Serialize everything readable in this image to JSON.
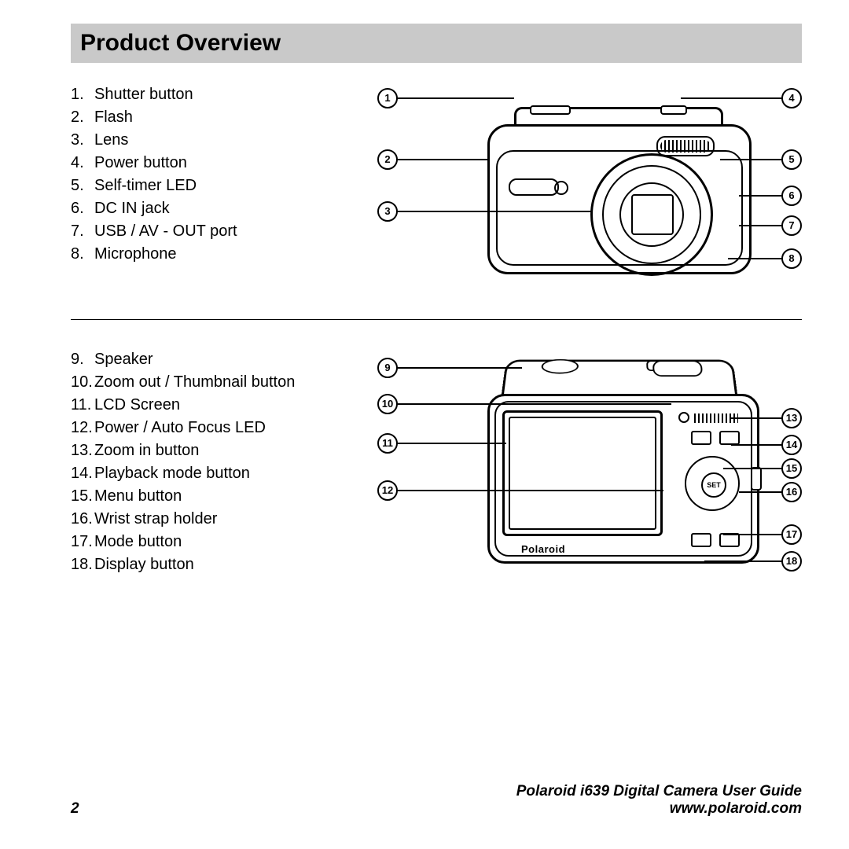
{
  "title": "Product Overview",
  "front_parts": [
    {
      "n": "1.",
      "label": "Shutter button"
    },
    {
      "n": "2.",
      "label": "Flash"
    },
    {
      "n": "3.",
      "label": "Lens"
    },
    {
      "n": "4.",
      "label": "Power button"
    },
    {
      "n": "5.",
      "label": "Self-timer LED"
    },
    {
      "n": "6.",
      "label": "DC IN jack"
    },
    {
      "n": "7.",
      "label": "USB / AV - OUT port"
    },
    {
      "n": "8.",
      "label": "Microphone"
    }
  ],
  "back_parts": [
    {
      "n": "9.",
      "label": "Speaker"
    },
    {
      "n": "10.",
      "label": "Zoom out / Thumbnail button"
    },
    {
      "n": "11.",
      "label": "LCD Screen"
    },
    {
      "n": "12.",
      "label": "Power / Auto Focus LED"
    },
    {
      "n": "13.",
      "label": "Zoom in button"
    },
    {
      "n": "14.",
      "label": "Playback mode button"
    },
    {
      "n": "15.",
      "label": "Menu button"
    },
    {
      "n": "16.",
      "label": "Wrist strap holder"
    },
    {
      "n": "17.",
      "label": "Mode button"
    },
    {
      "n": "18.",
      "label": "Display button"
    }
  ],
  "front_callouts": {
    "left": [
      "1",
      "2",
      "3"
    ],
    "right": [
      "4",
      "5",
      "6",
      "7",
      "8"
    ]
  },
  "back_callouts": {
    "left": [
      "9",
      "10",
      "11",
      "12"
    ],
    "right": [
      "13",
      "14",
      "15",
      "16",
      "17",
      "18"
    ]
  },
  "brand_on_camera": "Polaroid",
  "footer": {
    "page": "2",
    "guide": "Polaroid i639 Digital Camera User Guide",
    "url": "www.polaroid.com"
  },
  "colors": {
    "title_bg": "#c9c9c9",
    "line": "#000000",
    "text": "#000000",
    "page_bg": "#ffffff"
  },
  "fonts": {
    "title_size_pt": 22,
    "body_size_pt": 15,
    "footer_size_pt": 14
  },
  "diagram": {
    "type": "labeled-diagram",
    "views": [
      "front",
      "back"
    ]
  }
}
